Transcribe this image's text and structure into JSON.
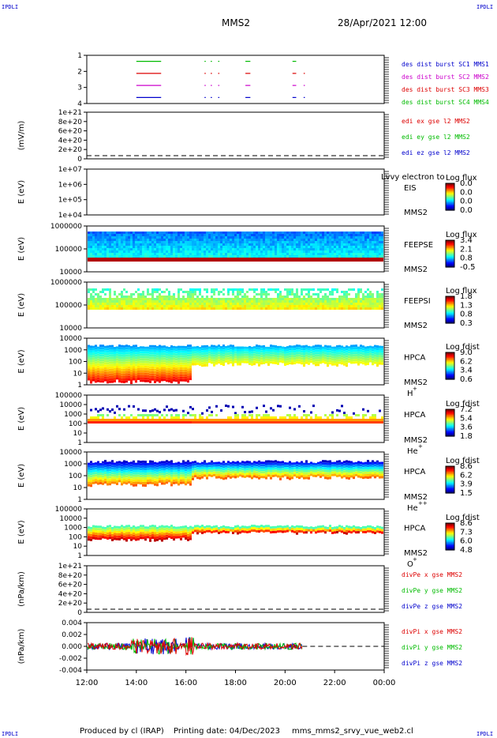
{
  "corner_label": "IPDLI",
  "header": {
    "spacecraft": "MMS2",
    "date": "28/Apr/2021 12:00"
  },
  "footer": {
    "produced_by": "Produced by cl (IRAP)",
    "printing_date": "Printing date: 04/Dec/2023",
    "script": "mms_mms2_srvy_vue_web2.cl"
  },
  "time_axis": {
    "ticks": [
      "12:00",
      "14:00",
      "16:00",
      "18:00",
      "20:00",
      "22:00",
      "00:00"
    ]
  },
  "colors": {
    "red": "#dd0000",
    "green": "#00bb00",
    "blue": "#0000cc",
    "magenta": "#cc00cc"
  },
  "chart_data": [
    {
      "type": "line",
      "id": "burst",
      "ylim": [
        0.5,
        4.5
      ],
      "yticks": [
        "1",
        "2",
        "3",
        "4"
      ],
      "legend": [
        "des dist burst SC1 MMS1",
        "des dist burst SC2 MMS2",
        "des dist burst SC3 MMS3",
        "des dist burst SC4 MMS4"
      ],
      "series": [
        {
          "name": "SC4",
          "y": 4,
          "segments": [
            [
              14.0,
              15.0
            ],
            [
              16.75,
              16.8
            ],
            [
              17.0,
              17.05
            ],
            [
              17.3,
              17.35
            ],
            [
              18.4,
              18.6
            ],
            [
              20.3,
              20.45
            ]
          ]
        },
        {
          "name": "SC3",
          "y": 3,
          "segments": [
            [
              14.0,
              15.0
            ],
            [
              16.75,
              16.8
            ],
            [
              17.0,
              17.05
            ],
            [
              17.3,
              17.35
            ],
            [
              18.4,
              18.6
            ],
            [
              20.3,
              20.45
            ],
            [
              20.75,
              20.8
            ]
          ]
        },
        {
          "name": "SC2",
          "y": 2,
          "segments": [
            [
              14.0,
              15.0
            ],
            [
              16.75,
              16.8
            ],
            [
              17.0,
              17.05
            ],
            [
              17.3,
              17.35
            ],
            [
              18.4,
              18.6
            ],
            [
              20.3,
              20.45
            ],
            [
              20.75,
              20.8
            ]
          ]
        },
        {
          "name": "SC1",
          "y": 1,
          "segments": [
            [
              14.0,
              15.0
            ],
            [
              16.75,
              16.8
            ],
            [
              17.0,
              17.05
            ],
            [
              17.3,
              17.35
            ],
            [
              18.4,
              18.6
            ],
            [
              20.3,
              20.45
            ],
            [
              20.75,
              20.8
            ]
          ]
        }
      ]
    },
    {
      "type": "line",
      "id": "edi",
      "ylabel": "(mV/m)",
      "yticks": [
        "1e+21",
        "8e+20",
        "6e+20",
        "4e+20",
        "2e+20",
        "0"
      ],
      "legend": [
        "edi ex gse l2 MMS2",
        "edi ey gse l2 MMS2",
        "edi ez gse l2 MMS2"
      ]
    },
    {
      "type": "heatmap",
      "id": "eis",
      "ylabel": "E (eV)",
      "yticks": [
        "1e+07",
        "1e+06",
        "1e+05",
        "1e+04"
      ],
      "instrument": "EIS",
      "species": "MMS2",
      "extra": "Lvvy electron to",
      "colorbar_title": "Log flux",
      "colorbar_ticks": [
        "0.0",
        "0.0",
        "0.0",
        "0.0"
      ]
    },
    {
      "type": "heatmap",
      "id": "feepse",
      "ylabel": "E (eV)",
      "yticks": [
        "1000000",
        "100000",
        "10000"
      ],
      "instrument": "FEEPSE",
      "species": "MMS2",
      "colorbar_title": "Log flux",
      "colorbar_ticks": [
        "3.4",
        "2.1",
        "0.8",
        "-0.5"
      ]
    },
    {
      "type": "heatmap",
      "id": "feepsi",
      "ylabel": "E (eV)",
      "yticks": [
        "1000000",
        "100000",
        "10000"
      ],
      "instrument": "FEEPSI",
      "species": "MMS2",
      "colorbar_title": "Log flux",
      "colorbar_ticks": [
        "1.8",
        "1.3",
        "0.8",
        "0.3"
      ]
    },
    {
      "type": "heatmap",
      "id": "hpca_h",
      "ylabel": "E (eV)",
      "yticks": [
        "10000",
        "1000",
        "100",
        "10",
        "1"
      ],
      "instrument": "HPCA",
      "species": "MMS2",
      "ion": "H",
      "ion_charge": "+",
      "colorbar_title": "Log fdist",
      "colorbar_ticks": [
        "9.0",
        "6.2",
        "3.4",
        "0.6"
      ]
    },
    {
      "type": "heatmap",
      "id": "hpca_he1",
      "ylabel": "E (eV)",
      "yticks": [
        "100000",
        "10000",
        "1000",
        "100",
        "10",
        "1"
      ],
      "instrument": "HPCA",
      "species": "MMS2",
      "ion": "He",
      "ion_charge": "+",
      "colorbar_title": "Log fdist",
      "colorbar_ticks": [
        "7.2",
        "5.4",
        "3.6",
        "1.8"
      ]
    },
    {
      "type": "heatmap",
      "id": "hpca_he2",
      "ylabel": "E (eV)",
      "yticks": [
        "10000",
        "1000",
        "100",
        "10",
        "1"
      ],
      "instrument": "HPCA",
      "species": "MMS2",
      "ion": "He",
      "ion_charge": "++",
      "colorbar_title": "Log fdist",
      "colorbar_ticks": [
        "8.6",
        "6.2",
        "3.9",
        "1.5"
      ]
    },
    {
      "type": "heatmap",
      "id": "hpca_o",
      "ylabel": "E (eV)",
      "yticks": [
        "100000",
        "10000",
        "1000",
        "100",
        "10",
        "1"
      ],
      "instrument": "HPCA",
      "species": "MMS2",
      "ion": "O",
      "ion_charge": "+",
      "colorbar_title": "Log fdist",
      "colorbar_ticks": [
        "8.6",
        "7.3",
        "6.0",
        "4.8"
      ]
    },
    {
      "type": "line",
      "id": "divpe",
      "ylabel": "(nPa/km)",
      "yticks": [
        "1e+21",
        "8e+20",
        "6e+20",
        "4e+20",
        "2e+20",
        "0"
      ],
      "legend": [
        "divPe x gse MMS2",
        "divPe y gse MMS2",
        "divPe z gse MMS2"
      ]
    },
    {
      "type": "line",
      "id": "divpi",
      "ylabel": "(nPa/km)",
      "yticks": [
        "0.004",
        "0.002",
        "0.000",
        "-0.002",
        "-0.004"
      ],
      "ylim": [
        -0.0045,
        0.0045
      ],
      "legend": [
        "divPi x gse MMS2",
        "divPi y gse MMS2",
        "divPi z gse MMS2"
      ]
    }
  ]
}
